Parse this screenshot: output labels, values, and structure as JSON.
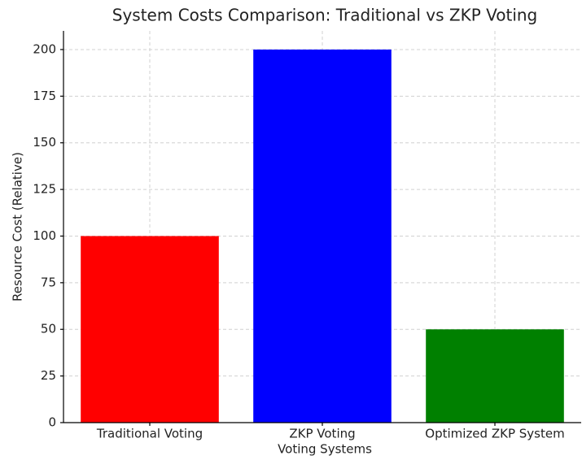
{
  "chart_data": {
    "type": "bar",
    "title": "System Costs Comparison: Traditional vs ZKP Voting",
    "x_label": "Voting Systems",
    "y_label": "Resource Cost (Relative)",
    "categories": [
      "Traditional Voting",
      "ZKP Voting",
      "Optimized ZKP System"
    ],
    "values": [
      100,
      200,
      50
    ],
    "colors": [
      "#ff0000",
      "#0000ff",
      "#008000"
    ],
    "ylim": [
      0,
      210
    ],
    "yticks": [
      0,
      25,
      50,
      75,
      100,
      125,
      150,
      175,
      200
    ],
    "grid": true
  }
}
